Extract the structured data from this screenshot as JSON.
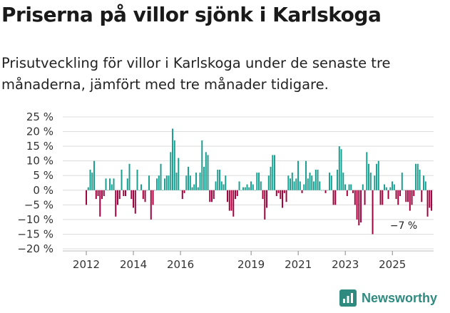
{
  "title": "Priserna på villor sjönk i Karlskoga",
  "subtitle": "Prisutveckling för villor i Karlskoga under de senaste tre månaderna, jämfört med tre månader tidigare.",
  "brand": {
    "name": "Newsworthy",
    "icon": "newsworthy-logo-icon",
    "color": "#2f8b7f"
  },
  "chart_data": {
    "type": "bar",
    "ylabel": "",
    "xlabel": "",
    "ylim": [
      -20,
      25
    ],
    "yticks": [
      25,
      20,
      15,
      10,
      5,
      0,
      -5,
      -10,
      -15,
      -20
    ],
    "ytick_labels": [
      "25 %",
      "20 %",
      "15 %",
      "10 %",
      "5 %",
      "0 %",
      "−5 %",
      "−10 %",
      "−15 %",
      "−20 %"
    ],
    "xlim": [
      2011.0,
      2026.75
    ],
    "xticks": [
      2012,
      2014,
      2016,
      2019,
      2021,
      2023,
      2025
    ],
    "xtick_labels": [
      "2012",
      "2014",
      "2016",
      "2019",
      "2021",
      "2023",
      "2025"
    ],
    "grid": true,
    "colors": {
      "positive": "#1a9e8f",
      "negative": "#a0003c"
    },
    "annotation": {
      "text": "−7 %",
      "x": 2025.6,
      "value": -7
    },
    "start": 2012.0,
    "step": 0.0833,
    "values": [
      -5,
      1,
      7,
      6,
      10,
      -3,
      -2,
      -9,
      -3,
      -2,
      4,
      0,
      4,
      2,
      4,
      -9,
      -5,
      -3,
      7,
      -2,
      -2,
      4,
      9,
      -3,
      -6,
      -8,
      7,
      0,
      2,
      -3,
      -4,
      0,
      5,
      -10,
      -5,
      0,
      4,
      5,
      9,
      0,
      4,
      5,
      5,
      13,
      21,
      17,
      6,
      11,
      0,
      -3,
      -1,
      5,
      8,
      5,
      1,
      2,
      6,
      1,
      6,
      17,
      8,
      13,
      12,
      -4,
      -4,
      -3,
      3,
      7,
      7,
      3,
      2,
      5,
      -4,
      -7,
      -7,
      -9,
      -3,
      -2,
      3,
      0,
      1,
      1,
      2,
      1,
      3,
      2,
      0,
      6,
      6,
      3,
      -3,
      -10,
      -6,
      5,
      8,
      12,
      12,
      -2,
      -1,
      -3,
      -6,
      -1,
      -4,
      5,
      4,
      6,
      3,
      4,
      10,
      3,
      -1,
      2,
      10,
      4,
      6,
      5,
      3,
      7,
      7,
      3,
      0,
      0,
      -1,
      0,
      6,
      5,
      -5,
      -5,
      7,
      15,
      14,
      6,
      2,
      -2,
      2,
      2,
      -1,
      -5,
      -10,
      -12,
      -11,
      2,
      -5,
      13,
      9,
      6,
      -15,
      5,
      9,
      10,
      -5,
      -5,
      2,
      1,
      -3,
      1,
      3,
      2,
      -3,
      -5,
      -2,
      6,
      0,
      -4,
      -4,
      -7,
      -5,
      -2,
      9,
      9,
      7,
      -4,
      5,
      3,
      -9,
      -6,
      -7
    ]
  }
}
